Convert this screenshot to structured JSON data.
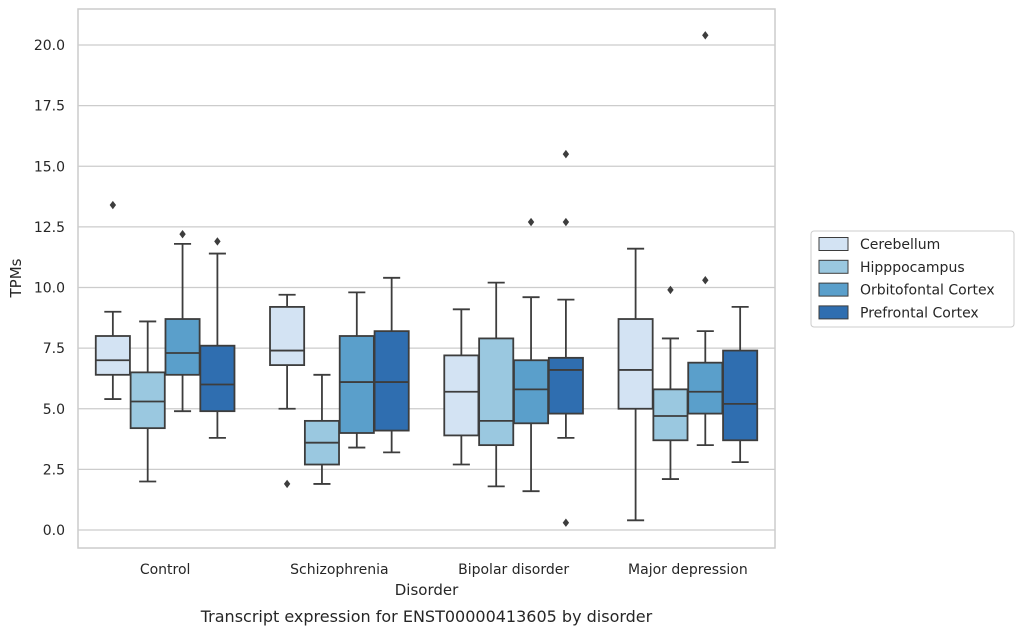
{
  "chart_data": {
    "type": "box",
    "title": "Transcript expression for ENST00000413605 by disorder",
    "xlabel": "Disorder",
    "ylabel": "TPMs",
    "ylim": [
      -0.7,
      21.5
    ],
    "yticks": [
      0.0,
      2.5,
      5.0,
      7.5,
      10.0,
      12.5,
      15.0,
      17.5,
      20.0
    ],
    "ytick_labels": [
      "0.0",
      "2.5",
      "5.0",
      "7.5",
      "10.0",
      "12.5",
      "15.0",
      "17.5",
      "20.0"
    ],
    "grid": true,
    "legend_position": "right",
    "categories": [
      "Control",
      "Schizophrenia",
      "Bipolar disorder",
      "Major depression"
    ],
    "series": [
      {
        "name": "Cerebellum",
        "color": "#d3e3f3",
        "boxes": [
          {
            "whislo": 5.4,
            "q1": 6.4,
            "med": 7.0,
            "q3": 8.0,
            "whishi": 9.0,
            "fliers": [
              13.4
            ]
          },
          {
            "whislo": 5.0,
            "q1": 6.8,
            "med": 7.4,
            "q3": 9.2,
            "whishi": 9.7,
            "fliers": [
              1.9
            ]
          },
          {
            "whislo": 2.7,
            "q1": 3.9,
            "med": 5.7,
            "q3": 7.2,
            "whishi": 9.1,
            "fliers": []
          },
          {
            "whislo": 0.4,
            "q1": 5.0,
            "med": 6.6,
            "q3": 8.7,
            "whishi": 11.6,
            "fliers": []
          }
        ]
      },
      {
        "name": "Hipppocampus",
        "color": "#9ac8e0",
        "boxes": [
          {
            "whislo": 2.0,
            "q1": 4.2,
            "med": 5.3,
            "q3": 6.5,
            "whishi": 8.6,
            "fliers": []
          },
          {
            "whislo": 1.9,
            "q1": 2.7,
            "med": 3.6,
            "q3": 4.5,
            "whishi": 6.4,
            "fliers": []
          },
          {
            "whislo": 1.8,
            "q1": 3.5,
            "med": 4.5,
            "q3": 7.9,
            "whishi": 10.2,
            "fliers": []
          },
          {
            "whislo": 2.1,
            "q1": 3.7,
            "med": 4.7,
            "q3": 5.8,
            "whishi": 7.9,
            "fliers": [
              9.9
            ]
          }
        ]
      },
      {
        "name": "Orbitofontal Cortex",
        "color": "#5a9fcb",
        "boxes": [
          {
            "whislo": 4.9,
            "q1": 6.4,
            "med": 7.3,
            "q3": 8.7,
            "whishi": 11.8,
            "fliers": [
              12.2
            ]
          },
          {
            "whislo": 3.4,
            "q1": 4.0,
            "med": 6.1,
            "q3": 8.0,
            "whishi": 9.8,
            "fliers": []
          },
          {
            "whislo": 1.6,
            "q1": 4.4,
            "med": 5.8,
            "q3": 7.0,
            "whishi": 9.6,
            "fliers": [
              12.7
            ]
          },
          {
            "whislo": 3.5,
            "q1": 4.8,
            "med": 5.7,
            "q3": 6.9,
            "whishi": 8.2,
            "fliers": [
              10.3,
              20.4
            ]
          }
        ]
      },
      {
        "name": "Prefrontal Cortex",
        "color": "#2f6eb0",
        "boxes": [
          {
            "whislo": 3.8,
            "q1": 4.9,
            "med": 6.0,
            "q3": 7.6,
            "whishi": 11.4,
            "fliers": [
              11.9
            ]
          },
          {
            "whislo": 3.2,
            "q1": 4.1,
            "med": 6.1,
            "q3": 8.2,
            "whishi": 10.4,
            "fliers": []
          },
          {
            "whislo": 3.8,
            "q1": 4.8,
            "med": 6.6,
            "q3": 7.1,
            "whishi": 9.5,
            "fliers": [
              0.3,
              12.7,
              15.5
            ]
          },
          {
            "whislo": 2.8,
            "q1": 3.7,
            "med": 5.2,
            "q3": 7.4,
            "whishi": 9.2,
            "fliers": []
          }
        ]
      }
    ]
  }
}
